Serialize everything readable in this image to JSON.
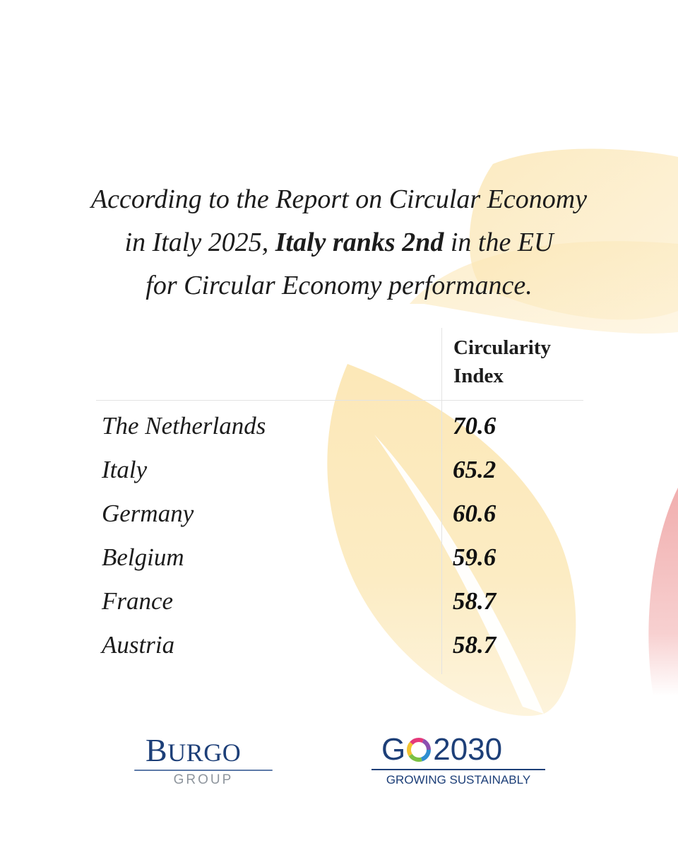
{
  "headline": {
    "line1": "According to the Report on Circular Economy",
    "line2_pre": "in Italy 2025, ",
    "line2_emphasis": "Italy ranks 2nd",
    "line2_post": " in the EU",
    "line3": "for Circular Economy performance."
  },
  "table": {
    "column_header_line1": "Circularity",
    "column_header_line2": "Index",
    "rows": [
      {
        "country": "The Netherlands",
        "score": "70.6"
      },
      {
        "country": "Italy",
        "score": "65.2"
      },
      {
        "country": "Germany",
        "score": "60.6"
      },
      {
        "country": "Belgium",
        "score": "59.6"
      },
      {
        "country": "France",
        "score": "58.7"
      },
      {
        "country": "Austria",
        "score": "58.7"
      }
    ]
  },
  "logos": {
    "burgo": {
      "word_initial": "B",
      "word_rest": "URGO",
      "sub": "GROUP"
    },
    "go2030": {
      "prefix": "G",
      "number": " 2030",
      "sub": "GROWING SUSTAINABLY"
    }
  },
  "colors": {
    "brand_navy": "#1d3f78",
    "leaf_yellow": "#f8d98a",
    "leaf_red": "#e89090",
    "text": "#1c1c1c"
  }
}
